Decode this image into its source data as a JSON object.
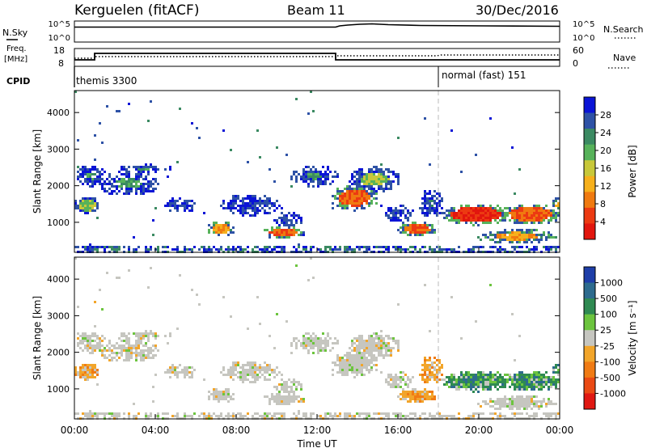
{
  "header": {
    "station": "Kerguelen (fitACF)",
    "beam": "Beam 11",
    "date": "30/Dec/2016"
  },
  "nsky": {
    "label": "N.Sky",
    "ticks": [
      "10^5",
      "10^0"
    ],
    "right_label": "N.Search",
    "right_ticks": [
      "10^5",
      "10^0"
    ]
  },
  "freq": {
    "label_line1": "Freq.",
    "label_line2": "[MHz]",
    "ticks": [
      "18",
      "8"
    ],
    "right_label": "Nave",
    "right_ticks": [
      "60",
      "0"
    ]
  },
  "cpid": {
    "label": "CPID",
    "segments": [
      "themis 3300",
      "normal (fast) 151"
    ]
  },
  "xaxis": {
    "label": "Time UT",
    "ticks": [
      "00:00",
      "04:00",
      "08:00",
      "12:00",
      "16:00",
      "20:00",
      "00:00"
    ]
  },
  "chart_data": [
    {
      "type": "heatmap",
      "title": "Power",
      "ylabel": "Slant Range [km]",
      "yticks": [
        "4000",
        "3000",
        "2000",
        "1000"
      ],
      "colorbar_label": "Power [dB]",
      "colorbar_ticks": [
        "28",
        "24",
        "20",
        "16",
        "12",
        "8",
        "4"
      ],
      "colorbar_colors": [
        "#0a14d6",
        "#2e52a6",
        "#3b8a62",
        "#57b25a",
        "#c8c83a",
        "#f6b01c",
        "#f07a10",
        "#ec3a12",
        "#e2160e"
      ],
      "colorbar_range": [
        0,
        32
      ],
      "xlim_hours": [
        0,
        24
      ],
      "ylim_km": [
        180,
        4600
      ],
      "mode_change_hour": 18
    },
    {
      "type": "heatmap",
      "title": "Velocity",
      "ylabel": "Slant Range [km]",
      "yticks": [
        "4000",
        "3000",
        "2000",
        "1000"
      ],
      "colorbar_label": "Velocity [m s⁻¹]",
      "colorbar_ticks": [
        "1000",
        "500",
        "100",
        "25",
        "-25",
        "-100",
        "-500",
        "-1000"
      ],
      "colorbar_colors": [
        "#1e3ea8",
        "#2d6b8e",
        "#2f8a52",
        "#6cc43e",
        "#c6c6c0",
        "#f2a52a",
        "#f07b14",
        "#ea4a14",
        "#e01812"
      ],
      "xlim_hours": [
        0,
        24
      ],
      "ylim_km": [
        180,
        4600
      ],
      "mode_change_hour": 18
    }
  ]
}
